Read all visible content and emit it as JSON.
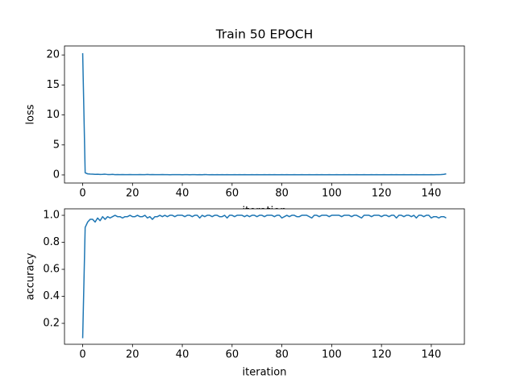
{
  "chart_data": [
    {
      "type": "line",
      "title": "Train 50 EPOCH",
      "xlabel": "iteration",
      "ylabel": "loss",
      "color": "#1f77b4",
      "x": [
        0,
        1,
        2,
        3,
        4,
        5,
        6,
        7,
        8,
        9,
        10,
        11,
        12,
        13,
        14,
        15,
        16,
        17,
        18,
        19,
        20,
        21,
        22,
        23,
        24,
        25,
        26,
        27,
        28,
        29,
        30,
        31,
        32,
        33,
        34,
        35,
        36,
        37,
        38,
        39,
        40,
        41,
        42,
        43,
        44,
        45,
        46,
        47,
        48,
        49,
        50,
        51,
        52,
        53,
        54,
        55,
        56,
        57,
        58,
        59,
        60,
        61,
        62,
        63,
        64,
        65,
        66,
        67,
        68,
        69,
        70,
        71,
        72,
        73,
        74,
        75,
        76,
        77,
        78,
        79,
        80,
        81,
        82,
        83,
        84,
        85,
        86,
        87,
        88,
        89,
        90,
        91,
        92,
        93,
        94,
        95,
        96,
        97,
        98,
        99,
        100,
        101,
        102,
        103,
        104,
        105,
        106,
        107,
        108,
        109,
        110,
        111,
        112,
        113,
        114,
        115,
        116,
        117,
        118,
        119,
        120,
        121,
        122,
        123,
        124,
        125,
        126,
        127,
        128,
        129,
        130,
        131,
        132,
        133,
        134,
        135,
        136,
        137,
        138,
        139,
        140,
        141,
        142,
        143,
        144,
        145,
        146
      ],
      "values": [
        20.3,
        0.35,
        0.18,
        0.14,
        0.12,
        0.1,
        0.11,
        0.08,
        0.09,
        0.12,
        0.07,
        0.06,
        0.09,
        0.05,
        0.06,
        0.05,
        0.07,
        0.05,
        0.04,
        0.06,
        0.05,
        0.04,
        0.05,
        0.06,
        0.04,
        0.05,
        0.08,
        0.05,
        0.06,
        0.04,
        0.05,
        0.04,
        0.06,
        0.05,
        0.04,
        0.03,
        0.05,
        0.04,
        0.05,
        0.04,
        0.03,
        0.04,
        0.05,
        0.03,
        0.04,
        0.05,
        0.03,
        0.04,
        0.03,
        0.06,
        0.04,
        0.03,
        0.04,
        0.03,
        0.05,
        0.03,
        0.04,
        0.03,
        0.04,
        0.03,
        0.03,
        0.04,
        0.03,
        0.05,
        0.03,
        0.04,
        0.03,
        0.03,
        0.04,
        0.03,
        0.04,
        0.03,
        0.03,
        0.04,
        0.03,
        0.05,
        0.03,
        0.04,
        0.03,
        0.03,
        0.04,
        0.03,
        0.05,
        0.03,
        0.03,
        0.04,
        0.03,
        0.03,
        0.04,
        0.03,
        0.03,
        0.04,
        0.03,
        0.03,
        0.05,
        0.03,
        0.04,
        0.03,
        0.03,
        0.04,
        0.03,
        0.03,
        0.04,
        0.03,
        0.03,
        0.04,
        0.03,
        0.05,
        0.03,
        0.03,
        0.04,
        0.03,
        0.03,
        0.04,
        0.03,
        0.03,
        0.05,
        0.03,
        0.04,
        0.03,
        0.03,
        0.04,
        0.03,
        0.03,
        0.04,
        0.03,
        0.05,
        0.03,
        0.03,
        0.04,
        0.03,
        0.03,
        0.04,
        0.03,
        0.05,
        0.03,
        0.03,
        0.04,
        0.03,
        0.03,
        0.04,
        0.03,
        0.05,
        0.04,
        0.06,
        0.1,
        0.18
      ],
      "xlim": [
        -7.3,
        153.3
      ],
      "ylim": [
        -1.35,
        21.5
      ],
      "xticks": [
        0,
        20,
        40,
        60,
        80,
        100,
        120,
        140
      ],
      "yticks": [
        0,
        5,
        10,
        15,
        20
      ]
    },
    {
      "type": "line",
      "xlabel": "iteration",
      "ylabel": "accuracy",
      "color": "#1f77b4",
      "x": [
        0,
        1,
        2,
        3,
        4,
        5,
        6,
        7,
        8,
        9,
        10,
        11,
        12,
        13,
        14,
        15,
        16,
        17,
        18,
        19,
        20,
        21,
        22,
        23,
        24,
        25,
        26,
        27,
        28,
        29,
        30,
        31,
        32,
        33,
        34,
        35,
        36,
        37,
        38,
        39,
        40,
        41,
        42,
        43,
        44,
        45,
        46,
        47,
        48,
        49,
        50,
        51,
        52,
        53,
        54,
        55,
        56,
        57,
        58,
        59,
        60,
        61,
        62,
        63,
        64,
        65,
        66,
        67,
        68,
        69,
        70,
        71,
        72,
        73,
        74,
        75,
        76,
        77,
        78,
        79,
        80,
        81,
        82,
        83,
        84,
        85,
        86,
        87,
        88,
        89,
        90,
        91,
        92,
        93,
        94,
        95,
        96,
        97,
        98,
        99,
        100,
        101,
        102,
        103,
        104,
        105,
        106,
        107,
        108,
        109,
        110,
        111,
        112,
        113,
        114,
        115,
        116,
        117,
        118,
        119,
        120,
        121,
        122,
        123,
        124,
        125,
        126,
        127,
        128,
        129,
        130,
        131,
        132,
        133,
        134,
        135,
        136,
        137,
        138,
        139,
        140,
        141,
        142,
        143,
        144,
        145,
        146
      ],
      "values": [
        0.09,
        0.91,
        0.95,
        0.97,
        0.97,
        0.95,
        0.98,
        0.96,
        0.99,
        0.97,
        0.99,
        0.98,
        0.99,
        1.0,
        0.99,
        0.99,
        0.98,
        0.99,
        0.99,
        1.0,
        0.99,
        0.99,
        1.0,
        0.99,
        0.99,
        1.0,
        0.98,
        0.99,
        0.97,
        0.99,
        0.99,
        1.0,
        0.99,
        1.0,
        0.99,
        1.0,
        1.0,
        0.99,
        1.0,
        1.0,
        1.0,
        0.99,
        1.0,
        1.0,
        0.99,
        1.0,
        1.0,
        0.98,
        1.0,
        0.99,
        1.0,
        1.0,
        0.99,
        1.0,
        1.0,
        0.99,
        0.99,
        1.0,
        0.98,
        1.0,
        1.0,
        0.99,
        1.0,
        1.0,
        1.0,
        0.99,
        1.0,
        0.99,
        1.0,
        1.0,
        0.99,
        1.0,
        1.0,
        0.99,
        1.0,
        1.0,
        1.0,
        0.99,
        1.0,
        1.0,
        0.98,
        0.99,
        1.0,
        0.99,
        1.0,
        1.0,
        0.99,
        0.99,
        1.0,
        1.0,
        1.0,
        0.99,
        0.98,
        1.0,
        1.0,
        0.99,
        1.0,
        1.0,
        1.0,
        0.99,
        1.0,
        1.0,
        1.0,
        1.0,
        0.99,
        1.0,
        1.0,
        1.0,
        0.99,
        1.0,
        1.0,
        0.99,
        0.98,
        1.0,
        1.0,
        1.0,
        0.99,
        1.0,
        1.0,
        1.0,
        0.99,
        1.0,
        1.0,
        0.99,
        1.0,
        1.0,
        0.98,
        1.0,
        1.0,
        0.99,
        1.0,
        1.0,
        0.99,
        1.0,
        0.98,
        1.0,
        1.0,
        0.99,
        1.0,
        1.0,
        0.98,
        0.99,
        0.99,
        0.98,
        0.99,
        0.99,
        0.98
      ],
      "xlim": [
        -7.3,
        153.3
      ],
      "ylim": [
        0.045,
        1.048
      ],
      "xticks": [
        0,
        20,
        40,
        60,
        80,
        100,
        120,
        140
      ],
      "yticks": [
        0.2,
        0.4,
        0.6,
        0.8,
        {
          "value": 1.0,
          "label": "1.0"
        }
      ]
    }
  ]
}
